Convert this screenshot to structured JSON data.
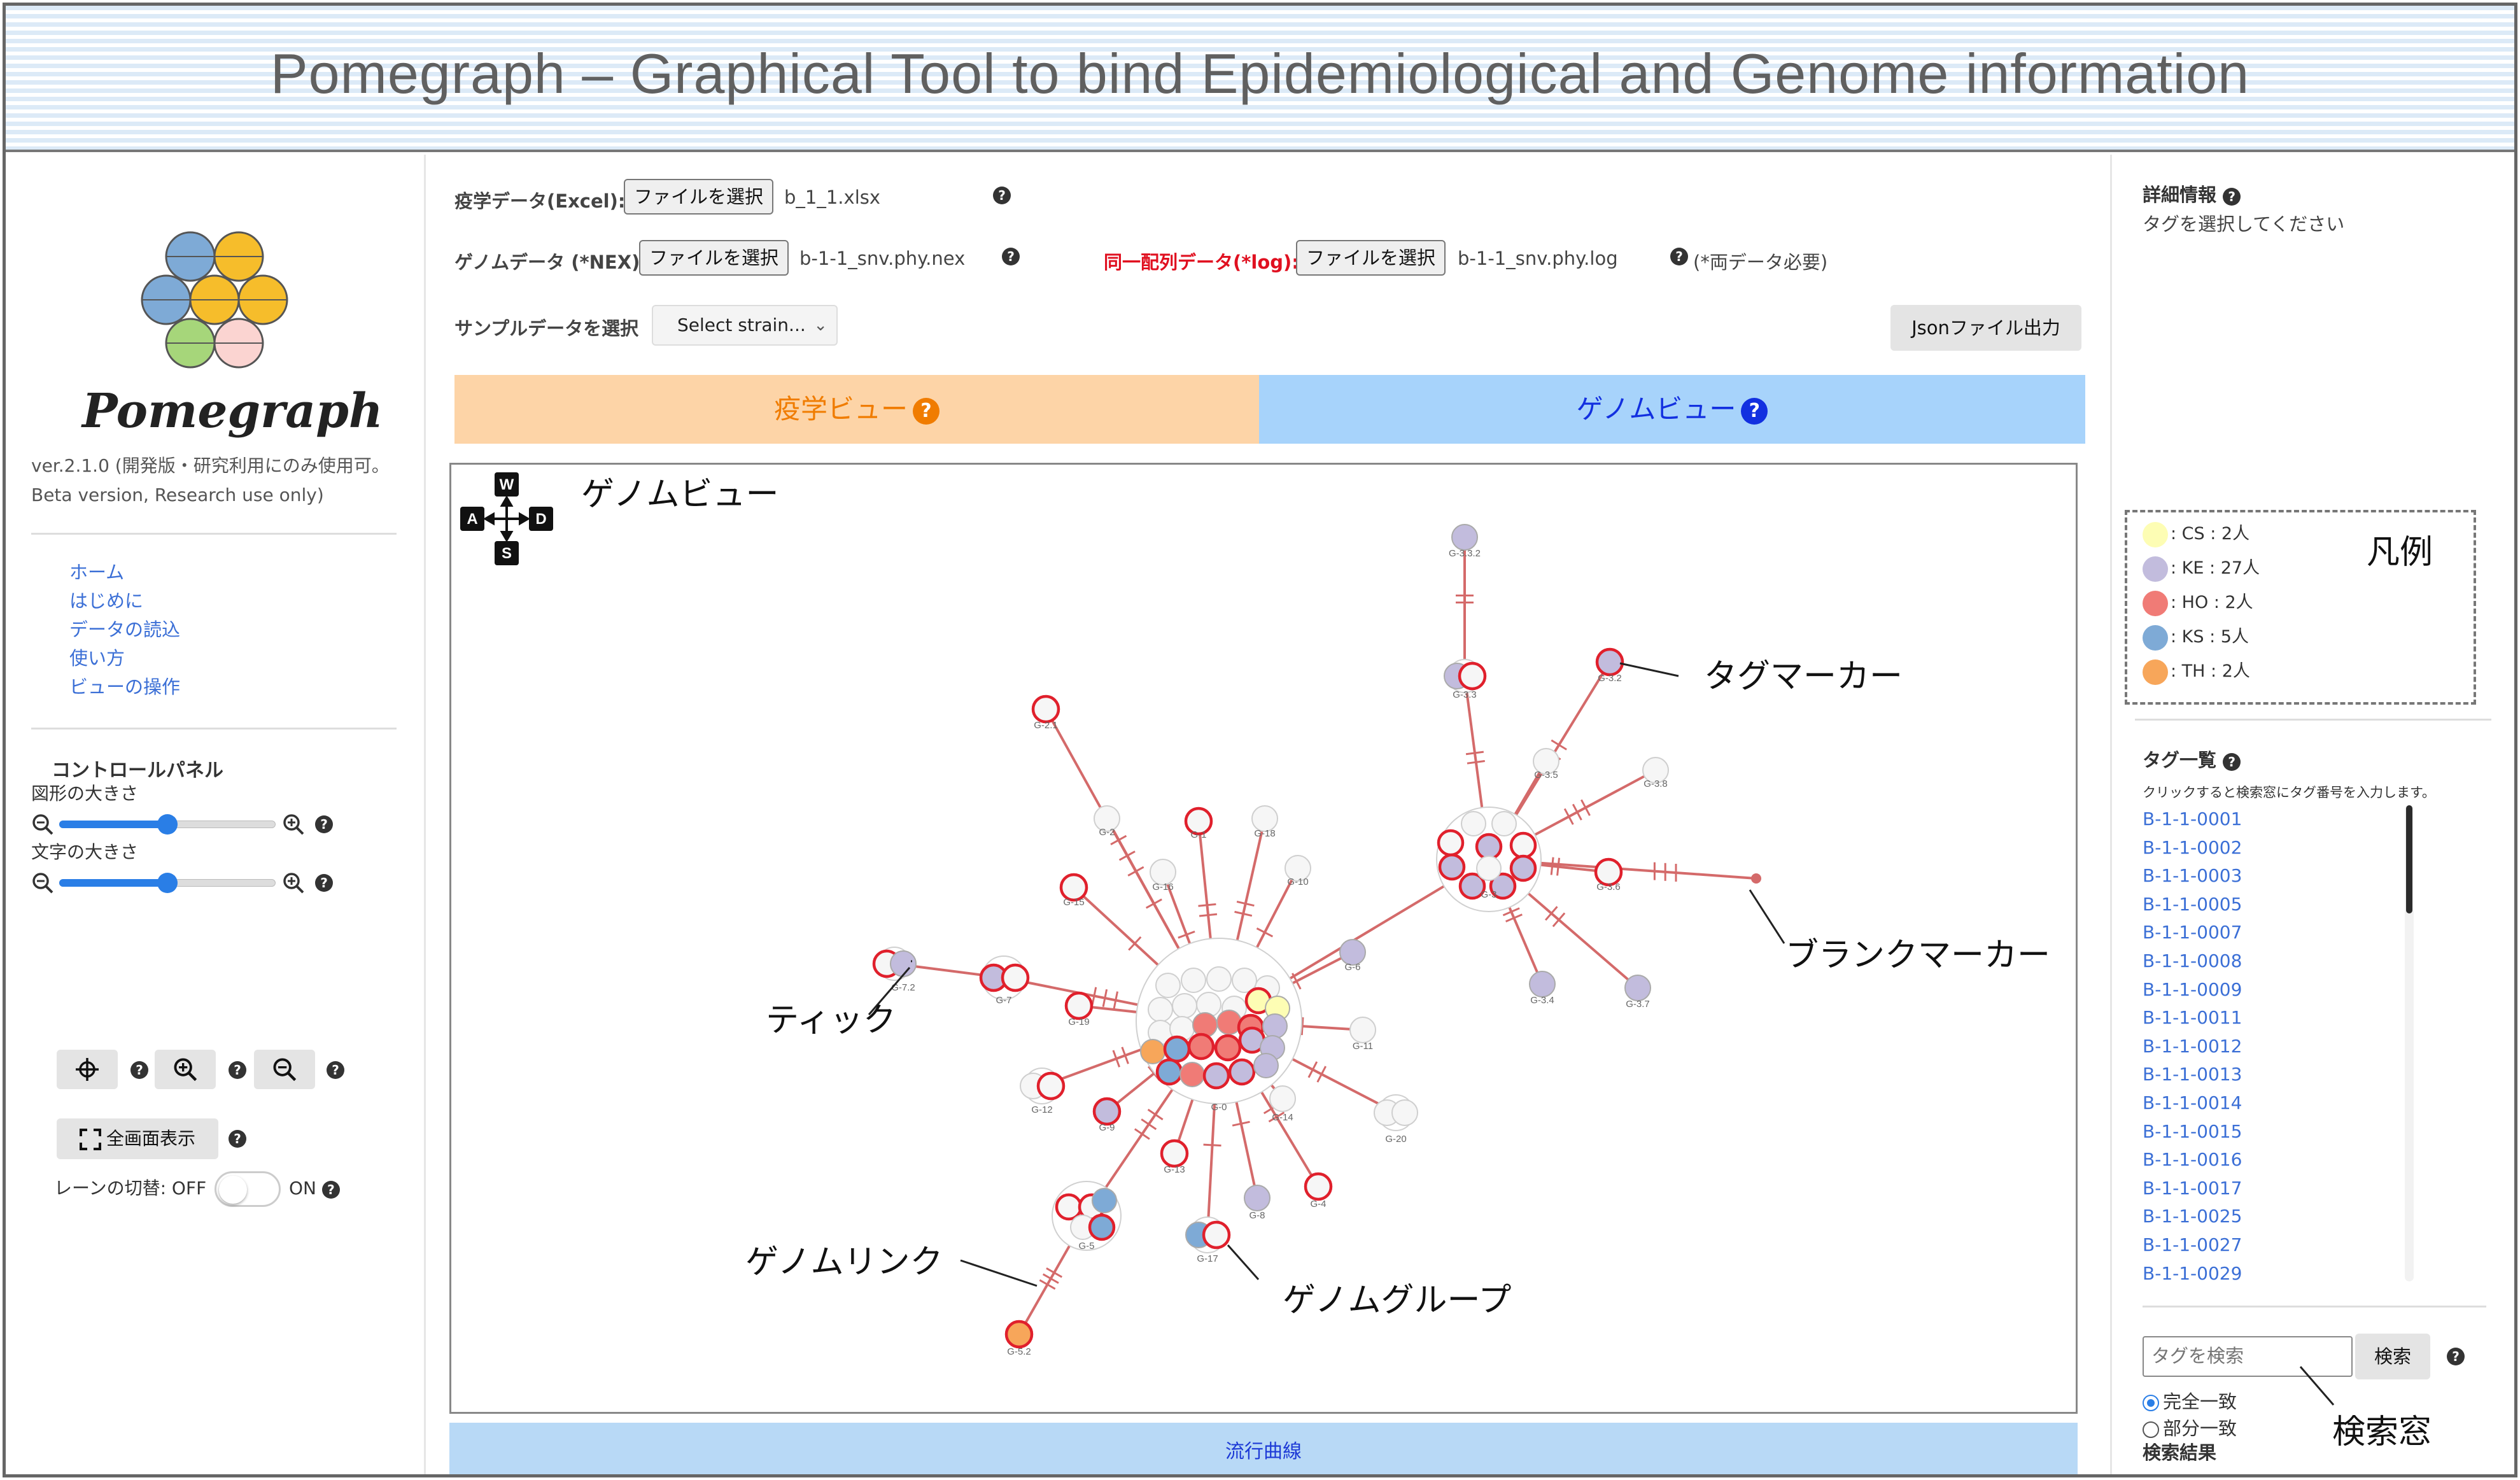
{
  "header": {
    "title": "Pomegraph – Graphical Tool to bind Epidemiological and Genome information"
  },
  "sidebar": {
    "logo_text": "Pomegraph",
    "version": "ver.2.1.0 (開発版・研究利用にのみ使用可。 Beta version, Research use only)",
    "nav": [
      "ホーム",
      "はじめに",
      "データの読込",
      "使い方",
      "ビューの操作"
    ],
    "control_panel": {
      "title": "コントロールパネル",
      "shape_size_label": "図形の大きさ",
      "shape_size_level": 0.5,
      "text_size_label": "文字の大きさ",
      "text_size_level": 0.5,
      "fullscreen_label": "全画面表示",
      "lane_toggle_label": "レーンの切替: OFF",
      "lane_toggle_on": "ON",
      "lane_toggle_state": "OFF"
    }
  },
  "main": {
    "epi_data": {
      "label": "疫学データ(Excel):",
      "button": "ファイルを選択",
      "file": "b_1_1.xlsx"
    },
    "genome_data": {
      "label": "ゲノムデータ (*NEX):",
      "button": "ファイルを選択",
      "file": "b-1-1_snv.phy.nex"
    },
    "same_seq_data": {
      "label": "同一配列データ(*log):",
      "button": "ファイルを選択",
      "file": "b-1-1_snv.phy.log",
      "note": "(*両データ必要)"
    },
    "sample_select": {
      "label": "サンプルデータを選択",
      "value": "Select strain..."
    },
    "json_button": "Jsonファイル出力",
    "tabs": {
      "epi": "疫学ビュー",
      "genome": "ゲノムビュー"
    },
    "canvas": {
      "view_title": "ゲノムビュー",
      "nav_keys": [
        "W",
        "A",
        "S",
        "D"
      ],
      "annotations": {
        "tag_marker": "タグマーカー",
        "blank_marker": "ブランクマーカー",
        "tick": "ティック",
        "genome_link": "ゲノムリンク",
        "genome_group": "ゲノムグループ"
      },
      "node_labels": [
        "G-3.3.2",
        "G-3.3",
        "G-3.2",
        "G-3.5",
        "G-3.8",
        "G-3.6",
        "G-3",
        "G-3.4",
        "G-3.7",
        "G-2.1",
        "G-2",
        "G-1",
        "G-18",
        "G-16",
        "G-10",
        "G-15",
        "G-6",
        "G-7.2",
        "G-7",
        "G-19",
        "G-11",
        "G-0",
        "G-12",
        "G-9",
        "G-14",
        "G-20",
        "G-13",
        "G-4",
        "G-8",
        "G-5",
        "G-17",
        "G-5.2"
      ]
    },
    "trend_label": "流行曲線"
  },
  "right": {
    "detail_title": "詳細情報",
    "detail_text": "タグを選択してください",
    "legend": {
      "label": "凡例",
      "items": [
        {
          "text": ": CS : 2人",
          "color": "#fdfdb4"
        },
        {
          "text": ": KE : 27人",
          "color": "#c2bcdd"
        },
        {
          "text": ": HO : 2人",
          "color": "#f07b76"
        },
        {
          "text": ": KS : 5人",
          "color": "#7eaad6"
        },
        {
          "text": ": TH : 2人",
          "color": "#f7a65a"
        }
      ]
    },
    "tag_list": {
      "title": "タグ一覧",
      "hint": "クリックすると検索窓にタグ番号を入力します。",
      "items": [
        "B-1-1-0001",
        "B-1-1-0002",
        "B-1-1-0003",
        "B-1-1-0005",
        "B-1-1-0007",
        "B-1-1-0008",
        "B-1-1-0009",
        "B-1-1-0011",
        "B-1-1-0012",
        "B-1-1-0013",
        "B-1-1-0014",
        "B-1-1-0015",
        "B-1-1-0016",
        "B-1-1-0017",
        "B-1-1-0025",
        "B-1-1-0027",
        "B-1-1-0029"
      ]
    },
    "search": {
      "placeholder": "タグを検索",
      "button": "検索",
      "exact": "完全一致",
      "partial": "部分一致",
      "selected": "exact",
      "results_label": "検索結果",
      "callout": "検索窓"
    }
  },
  "colors": {
    "link": "#d46a6a",
    "tag_border": "#e0202c",
    "epi_tab": "#fdd4a7",
    "genome_tab": "#a7d3fb",
    "accent": "#2a7ee6"
  }
}
